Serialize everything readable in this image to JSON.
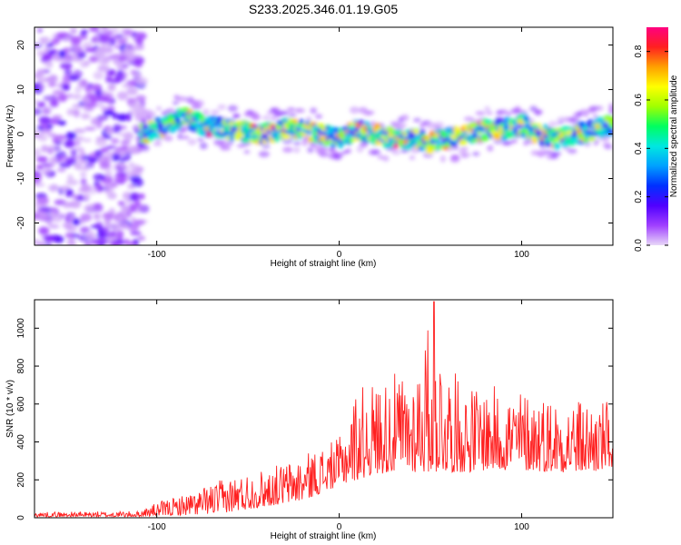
{
  "figure_title": "S233.2025.346.01.19.G05",
  "chart_data": [
    {
      "type": "heatmap",
      "title": "S233.2025.346.01.19.G05",
      "xlabel": "Height of straight line (km)",
      "ylabel": "Frequency (Hz)",
      "xlim": [
        -167,
        150
      ],
      "ylim": [
        -25,
        24
      ],
      "xticks": [
        -100,
        0,
        100
      ],
      "yticks": [
        -20,
        -10,
        0,
        10,
        20
      ],
      "colorbar": {
        "label": "Normalized spectral amplitude",
        "range": [
          0,
          0.9
        ],
        "ticks": [
          0.0,
          0.2,
          0.4,
          0.6,
          0.8
        ],
        "colors": [
          "#e8d8f8",
          "#a040ff",
          "#5000ff",
          "#0030ff",
          "#00a0ff",
          "#00e8e0",
          "#00ff60",
          "#a0ff00",
          "#ffff00",
          "#ffa000",
          "#ff2020",
          "#ff0080"
        ]
      },
      "ridge": {
        "x": [
          -108,
          -95,
          -85,
          -75,
          -60,
          -45,
          -30,
          -20,
          -10,
          0,
          10,
          20,
          30,
          40,
          50,
          60,
          70,
          80,
          90,
          100,
          110,
          120,
          130,
          140,
          150
        ],
        "frequency": [
          0,
          2,
          4,
          2,
          1,
          0,
          1,
          1,
          0,
          -1,
          1,
          0,
          -1,
          -1,
          -2,
          -1,
          0,
          1,
          1,
          2,
          0,
          -1,
          0,
          1,
          2
        ]
      },
      "noise_region_x": [
        -167,
        -107
      ]
    },
    {
      "type": "line",
      "xlabel": "Height of straight line (km)",
      "ylabel": "SNR (10 * v/v)",
      "xlim": [
        -167,
        150
      ],
      "ylim": [
        0,
        1150
      ],
      "xticks": [
        -100,
        0,
        100
      ],
      "yticks": [
        0,
        200,
        400,
        600,
        800,
        1000
      ],
      "series_color": "#ff2020",
      "envelope": {
        "x": [
          -167,
          -110,
          -100,
          -80,
          -60,
          -40,
          -20,
          0,
          10,
          20,
          30,
          40,
          50,
          60,
          70,
          80,
          100,
          120,
          140,
          150
        ],
        "low": [
          5,
          5,
          10,
          15,
          30,
          60,
          90,
          170,
          200,
          230,
          240,
          240,
          240,
          240,
          240,
          250,
          250,
          240,
          240,
          260
        ],
        "high": [
          30,
          35,
          80,
          140,
          220,
          260,
          330,
          420,
          700,
          720,
          760,
          770,
          1050,
          800,
          700,
          700,
          680,
          640,
          620,
          620
        ]
      },
      "peak": {
        "x": 52,
        "y": 1140
      }
    }
  ]
}
